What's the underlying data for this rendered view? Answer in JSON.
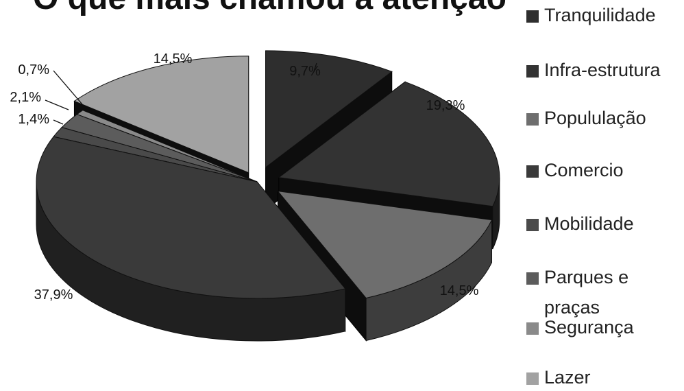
{
  "chart_data": {
    "type": "pie",
    "title": "O que mais chamou a atenção",
    "categories": [
      "Tranquilidade",
      "Infra-estrutura",
      "PopuluIação",
      "Comercio",
      "Mobilidade",
      "Parques e praças",
      "Segurança",
      "Lazer"
    ],
    "values": [
      9.7,
      19.3,
      14.5,
      37.9,
      1.4,
      2.1,
      0.7,
      14.5
    ],
    "value_labels": [
      "9,7%",
      "19,3%",
      "14,5%",
      "37,9%",
      "1,4%",
      "2,1%",
      "0,7%",
      "14,5%"
    ],
    "legend_labels": [
      "Tranquilidade",
      "Infra-estrutura",
      "Popululação",
      "Comercio",
      "Mobilidade",
      "Parques e praças",
      "Segurança",
      "Lazer"
    ],
    "colors": [
      "#2e2e2e",
      "#333333",
      "#6e6e6e",
      "#3a3a3a",
      "#4a4a4a",
      "#5c5c5c",
      "#8a8a8a",
      "#a2a2a2"
    ],
    "legend_position": "right",
    "style": "3d-exploded"
  }
}
